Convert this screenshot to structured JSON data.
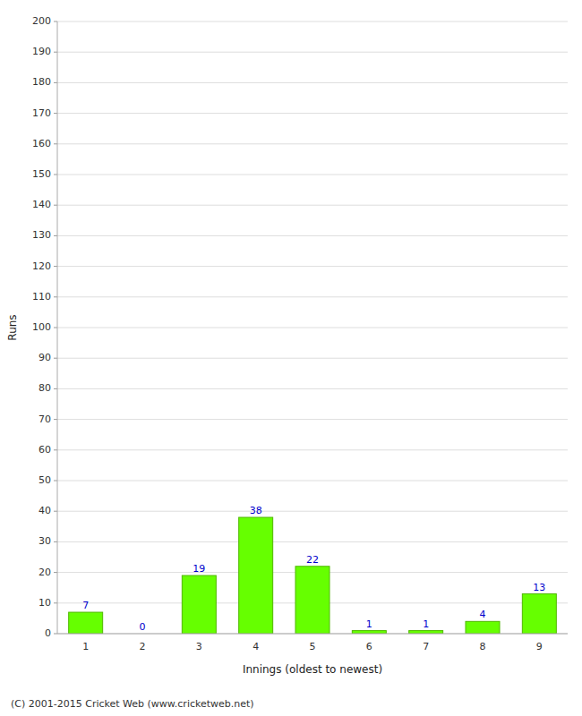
{
  "chart_data": {
    "type": "bar",
    "categories": [
      "1",
      "2",
      "3",
      "4",
      "5",
      "6",
      "7",
      "8",
      "9"
    ],
    "values": [
      7,
      0,
      19,
      38,
      22,
      1,
      1,
      4,
      13
    ],
    "color": "#66ff00",
    "xlabel": "Innings (oldest to newest)",
    "ylabel": "Runs",
    "ylim": [
      0,
      200
    ],
    "yticks": [
      0,
      10,
      20,
      30,
      40,
      50,
      60,
      70,
      80,
      90,
      100,
      110,
      120,
      130,
      140,
      150,
      160,
      170,
      180,
      190,
      200
    ],
    "grid": true,
    "data_labels": true,
    "annotations": [
      "(C) 2001-2015 Cricket Web (www.cricketweb.net)"
    ]
  }
}
